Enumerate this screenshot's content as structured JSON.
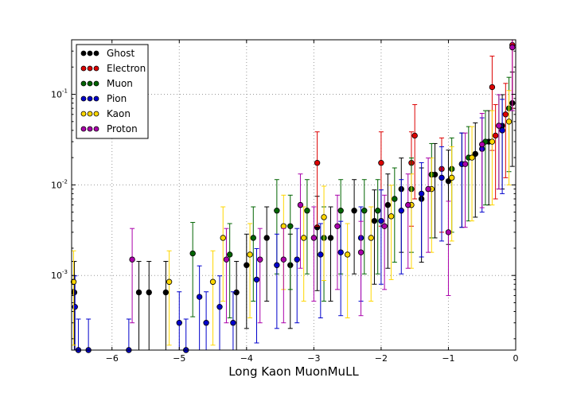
{
  "chart_data": {
    "type": "scatter",
    "title": "",
    "xlabel": "Long Kaon MuonMuLL",
    "ylabel": "",
    "xlim": [
      -6.6,
      0
    ],
    "ylim": [
      0.00015,
      0.4
    ],
    "yscale": "log",
    "grid": true,
    "legend_position": "top-left",
    "x_ticks": [
      -6,
      -5,
      -4,
      -3,
      -2,
      -1,
      0
    ],
    "x_tick_labels": [
      "−6",
      "−5",
      "−4",
      "−3",
      "−2",
      "−1",
      "0"
    ],
    "y_ticks": [
      0.001,
      0.01,
      0.1
    ],
    "y_tick_labels": [
      "10",
      "10",
      "10"
    ],
    "y_tick_exponents": [
      "-3",
      "-2",
      "-1"
    ],
    "series": [
      {
        "name": "Ghost",
        "color": "#000000",
        "x": [
          -6.56,
          -5.6,
          -5.45,
          -5.2,
          -4.15,
          -4.0,
          -3.7,
          -3.35,
          -2.95,
          -2.75,
          -2.4,
          -2.1,
          -1.9,
          -1.7,
          -1.4,
          -1.2,
          -1.0,
          -0.8,
          -0.6,
          -0.4,
          -0.2,
          -0.05
        ],
        "y": [
          0.00065,
          0.00065,
          0.00065,
          0.00065,
          0.00065,
          0.0013,
          0.0026,
          0.0013,
          0.0034,
          0.0026,
          0.0052,
          0.004,
          0.006,
          0.009,
          0.007,
          0.013,
          0.011,
          0.017,
          0.022,
          0.03,
          0.045,
          0.08
        ]
      },
      {
        "name": "Electron",
        "color": "#dd0000",
        "x": [
          -2.95,
          -2.0,
          -1.55,
          -1.5,
          -1.1,
          -0.35,
          -0.3,
          -0.15,
          -0.05
        ],
        "y": [
          0.0175,
          0.0175,
          0.0175,
          0.035,
          0.015,
          0.12,
          0.035,
          0.06,
          0.35
        ]
      },
      {
        "name": "Muon",
        "color": "#006400",
        "x": [
          -4.8,
          -4.25,
          -3.9,
          -3.55,
          -3.35,
          -3.1,
          -2.85,
          -2.6,
          -2.25,
          -2.05,
          -1.8,
          -1.55,
          -1.25,
          -0.95,
          -0.7,
          -0.45,
          -0.25,
          -0.1
        ],
        "y": [
          0.00175,
          0.0017,
          0.0026,
          0.0052,
          0.0035,
          0.0052,
          0.0026,
          0.0052,
          0.0052,
          0.0052,
          0.007,
          0.009,
          0.013,
          0.015,
          0.02,
          0.03,
          0.045,
          0.07
        ]
      },
      {
        "name": "Pion",
        "color": "#0000cc",
        "x": [
          -6.55,
          -6.5,
          -6.35,
          -5.75,
          -5.0,
          -4.9,
          -4.7,
          -4.6,
          -4.4,
          -4.2,
          -3.85,
          -3.55,
          -3.25,
          -2.9,
          -2.6,
          -2.3,
          -2.0,
          -1.7,
          -1.4,
          -1.1,
          -0.8,
          -0.5,
          -0.2
        ],
        "y": [
          0.00045,
          0.00015,
          0.00015,
          0.00015,
          0.0003,
          0.00015,
          0.00058,
          0.0003,
          0.00045,
          0.0003,
          0.0009,
          0.0013,
          0.0015,
          0.0017,
          0.0018,
          0.0026,
          0.004,
          0.0052,
          0.008,
          0.012,
          0.017,
          0.025,
          0.04
        ]
      },
      {
        "name": "Kaon",
        "color": "#ffd700",
        "x": [
          -6.57,
          -5.15,
          -4.5,
          -4.35,
          -3.95,
          -3.45,
          -3.15,
          -2.85,
          -2.5,
          -2.15,
          -1.85,
          -1.55,
          -1.25,
          -0.95,
          -0.65,
          -0.35,
          -0.1
        ],
        "y": [
          0.00085,
          0.00085,
          0.00085,
          0.0026,
          0.0017,
          0.0035,
          0.0026,
          0.0044,
          0.0017,
          0.0026,
          0.0045,
          0.006,
          0.009,
          0.012,
          0.02,
          0.03,
          0.05
        ]
      },
      {
        "name": "Proton",
        "color": "#aa00aa",
        "x": [
          -5.7,
          -4.3,
          -3.8,
          -3.45,
          -3.2,
          -3.0,
          -2.65,
          -2.3,
          -1.95,
          -1.6,
          -1.3,
          -1.0,
          -0.75,
          -0.5,
          -0.25,
          -0.05
        ],
        "y": [
          0.0015,
          0.0015,
          0.0015,
          0.0015,
          0.006,
          0.0026,
          0.0035,
          0.0018,
          0.0035,
          0.006,
          0.009,
          0.003,
          0.017,
          0.028,
          0.045,
          0.33
        ]
      }
    ]
  }
}
